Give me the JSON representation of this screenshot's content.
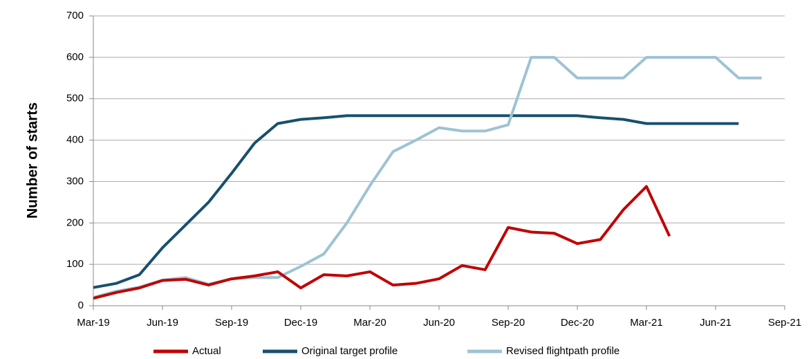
{
  "chart_data": {
    "type": "line",
    "y_label": "Number of starts",
    "categories": [
      "Mar-19",
      null,
      null,
      "Jun-19",
      null,
      null,
      "Sep-19",
      null,
      null,
      "Dec-19",
      null,
      null,
      "Mar-20",
      null,
      null,
      "Jun-20",
      null,
      null,
      "Sep-20",
      null,
      null,
      "Dec-20",
      null,
      null,
      "Mar-21",
      null,
      null,
      "Jun-21",
      null,
      null,
      "Sep-21"
    ],
    "series": [
      {
        "name": "Actual",
        "color": "#c00000",
        "values": [
          18,
          32,
          43,
          61,
          64,
          50,
          65,
          72,
          82,
          43,
          75,
          72,
          82,
          50,
          54,
          65,
          97,
          87,
          189,
          178,
          175,
          150,
          160,
          232,
          288,
          168,
          null,
          null,
          null,
          null,
          null
        ]
      },
      {
        "name": "Original target profile",
        "color": "#17506e",
        "values": [
          44,
          54,
          75,
          140,
          195,
          250,
          320,
          393,
          440,
          450,
          454,
          459,
          459,
          459,
          459,
          459,
          459,
          459,
          459,
          459,
          459,
          459,
          454,
          450,
          440,
          440,
          440,
          440,
          440,
          null,
          null
        ]
      },
      {
        "name": "Revised flightpath profile",
        "color": "#9dc3d4",
        "values": [
          20,
          35,
          45,
          62,
          68,
          52,
          65,
          68,
          68,
          95,
          125,
          200,
          290,
          372,
          400,
          430,
          422,
          422,
          437,
          600,
          600,
          550,
          550,
          550,
          600,
          600,
          600,
          600,
          550,
          550,
          null
        ]
      }
    ],
    "ylim": [
      0,
      700
    ],
    "yticks": [
      0,
      100,
      200,
      300,
      400,
      500,
      600,
      700
    ],
    "grid": true,
    "legend": "bottom"
  }
}
